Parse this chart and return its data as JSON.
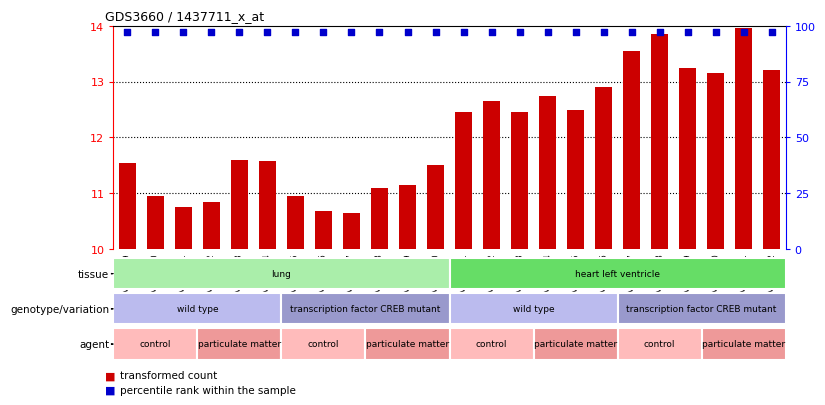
{
  "title": "GDS3660 / 1437711_x_at",
  "samples": [
    "GSM435909",
    "GSM435910",
    "GSM435911",
    "GSM435912",
    "GSM435913",
    "GSM435914",
    "GSM435915",
    "GSM435916",
    "GSM435917",
    "GSM435918",
    "GSM435919",
    "GSM435920",
    "GSM435921",
    "GSM435922",
    "GSM435923",
    "GSM435924",
    "GSM435925",
    "GSM435926",
    "GSM435927",
    "GSM435928",
    "GSM435929",
    "GSM435930",
    "GSM435931",
    "GSM435932"
  ],
  "bar_values": [
    11.55,
    10.95,
    10.75,
    10.85,
    11.6,
    11.58,
    10.95,
    10.68,
    10.65,
    11.1,
    11.15,
    11.5,
    12.45,
    12.65,
    12.45,
    12.75,
    12.5,
    12.9,
    13.55,
    13.85,
    13.25,
    13.15,
    13.95,
    13.2
  ],
  "percentile_values": [
    97,
    97,
    97,
    97,
    97,
    97,
    97,
    97,
    97,
    97,
    97,
    97,
    97,
    97,
    97,
    97,
    97,
    97,
    97,
    97,
    97,
    97,
    97,
    97
  ],
  "bar_color": "#cc0000",
  "percentile_color": "#0000cc",
  "ylim": [
    10,
    14
  ],
  "y_ticks_left": [
    10,
    11,
    12,
    13,
    14
  ],
  "y_ticks_right": [
    0,
    25,
    50,
    75,
    100
  ],
  "grid_lines": [
    11,
    12,
    13
  ],
  "tissue_groups": [
    {
      "label": "lung",
      "start": 0,
      "end": 12,
      "color": "#aaeea a"
    },
    {
      "label": "heart left ventricle",
      "start": 12,
      "end": 24,
      "color": "#66dd66"
    }
  ],
  "genotype_groups": [
    {
      "label": "wild type",
      "start": 0,
      "end": 6,
      "color": "#bbbbee"
    },
    {
      "label": "transcription factor CREB mutant",
      "start": 6,
      "end": 12,
      "color": "#9999cc"
    },
    {
      "label": "wild type",
      "start": 12,
      "end": 18,
      "color": "#bbbbee"
    },
    {
      "label": "transcription factor CREB mutant",
      "start": 18,
      "end": 24,
      "color": "#9999cc"
    }
  ],
  "agent_groups": [
    {
      "label": "control",
      "start": 0,
      "end": 3,
      "color": "#ffbbbb"
    },
    {
      "label": "particulate matter",
      "start": 3,
      "end": 6,
      "color": "#ee9999"
    },
    {
      "label": "control",
      "start": 6,
      "end": 9,
      "color": "#ffbbbb"
    },
    {
      "label": "particulate matter",
      "start": 9,
      "end": 12,
      "color": "#ee9999"
    },
    {
      "label": "control",
      "start": 12,
      "end": 15,
      "color": "#ffbbbb"
    },
    {
      "label": "particulate matter",
      "start": 15,
      "end": 18,
      "color": "#ee9999"
    },
    {
      "label": "control",
      "start": 18,
      "end": 21,
      "color": "#ffbbbb"
    },
    {
      "label": "particulate matter",
      "start": 21,
      "end": 24,
      "color": "#ee9999"
    }
  ],
  "legend_items": [
    {
      "label": "transformed count",
      "color": "#cc0000"
    },
    {
      "label": "percentile rank within the sample",
      "color": "#0000cc"
    }
  ],
  "row_labels": [
    "tissue",
    "genotype/variation",
    "agent"
  ],
  "background_color": "#ffffff"
}
